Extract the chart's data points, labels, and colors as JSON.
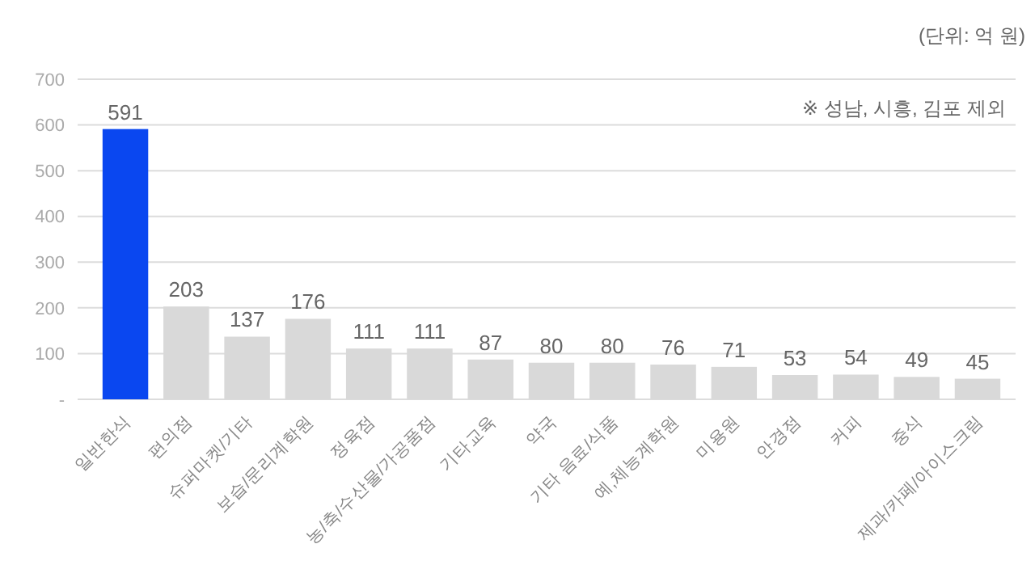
{
  "chart_data": {
    "type": "bar",
    "categories": [
      "일반한식",
      "편의점",
      "슈퍼마켓/기타",
      "보습/문리계학원",
      "정육점",
      "농/축/수산물/가공품점",
      "기타교육",
      "약국",
      "기타 음료/식품",
      "예,체능계학원",
      "미용원",
      "안경점",
      "커피",
      "중식",
      "제과/카페/아이스크림"
    ],
    "values": [
      591,
      203,
      137,
      176,
      111,
      111,
      87,
      80,
      80,
      76,
      71,
      53,
      54,
      49,
      45
    ],
    "colors": [
      "#0a47f0",
      "#d9d9d9",
      "#d9d9d9",
      "#d9d9d9",
      "#d9d9d9",
      "#d9d9d9",
      "#d9d9d9",
      "#d9d9d9",
      "#d9d9d9",
      "#d9d9d9",
      "#d9d9d9",
      "#d9d9d9",
      "#d9d9d9",
      "#d9d9d9",
      "#d9d9d9"
    ],
    "data_labels": true,
    "ylim": [
      0,
      700
    ],
    "yticks": [
      {
        "value": 0,
        "label": "-"
      },
      100,
      200,
      300,
      400,
      500,
      600,
      700
    ],
    "grid": "y",
    "annotations": [
      "(단위: 억 원)",
      "※ 성남, 시흥, 김포 제외"
    ]
  }
}
